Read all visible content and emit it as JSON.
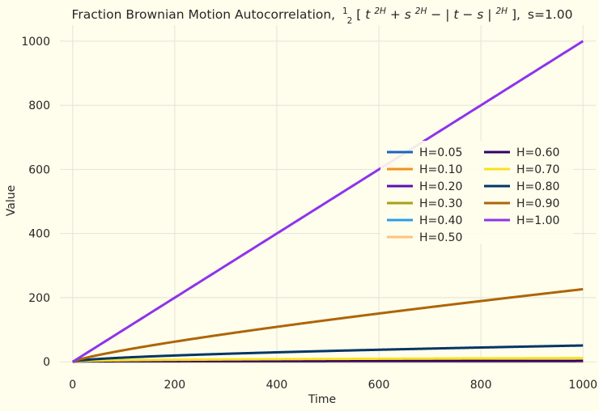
{
  "chart_data": {
    "type": "line",
    "title": "Fraction Brownian Motion Autocorrelation, ½[t^{2H} + s^{2H} − | t − s | ^{2H}], s=1.00",
    "title_parts": {
      "prefix": "Fraction Brownian Motion Autocorrelation,",
      "half_num": "1",
      "half_den": "2",
      "open_bracket": "[",
      "t": "t",
      "exp1": "2H",
      "plus": " + ",
      "s": "s",
      "exp2": "2H",
      "minus": " − ",
      "abs_expr": "| t − s |",
      "exp3": "2H",
      "close_bracket": "],",
      "suffix": "s=1.00"
    },
    "xlabel": "Time",
    "ylabel": "Value",
    "xlim": [
      -25,
      1025
    ],
    "ylim": [
      -2,
      1050
    ],
    "x_ticks": [
      0,
      200,
      400,
      600,
      800,
      1000
    ],
    "y_ticks": [
      0,
      200,
      400,
      600,
      800,
      1000
    ],
    "s": 1.0,
    "x_start": 0,
    "x_end": 1000,
    "grid": true,
    "legend_position": "center-right",
    "legend_columns": 2,
    "series": [
      {
        "name": "H=0.05",
        "H": 0.05,
        "color": "#1565c0"
      },
      {
        "name": "H=0.10",
        "H": 0.1,
        "color": "#f5901e"
      },
      {
        "name": "H=0.20",
        "H": 0.2,
        "color": "#5c0fb3"
      },
      {
        "name": "H=0.30",
        "H": 0.3,
        "color": "#a89f0f"
      },
      {
        "name": "H=0.40",
        "H": 0.4,
        "color": "#2d9ce8"
      },
      {
        "name": "H=0.50",
        "H": 0.5,
        "color": "#ffc27a"
      },
      {
        "name": "H=0.60",
        "H": 0.6,
        "color": "#330066"
      },
      {
        "name": "H=0.70",
        "H": 0.7,
        "color": "#f7e21f"
      },
      {
        "name": "H=0.80",
        "H": 0.8,
        "color": "#023566"
      },
      {
        "name": "H=0.90",
        "H": 0.9,
        "color": "#ad6508"
      },
      {
        "name": "H=1.00",
        "H": 1.0,
        "color": "#8d34ec"
      }
    ]
  }
}
